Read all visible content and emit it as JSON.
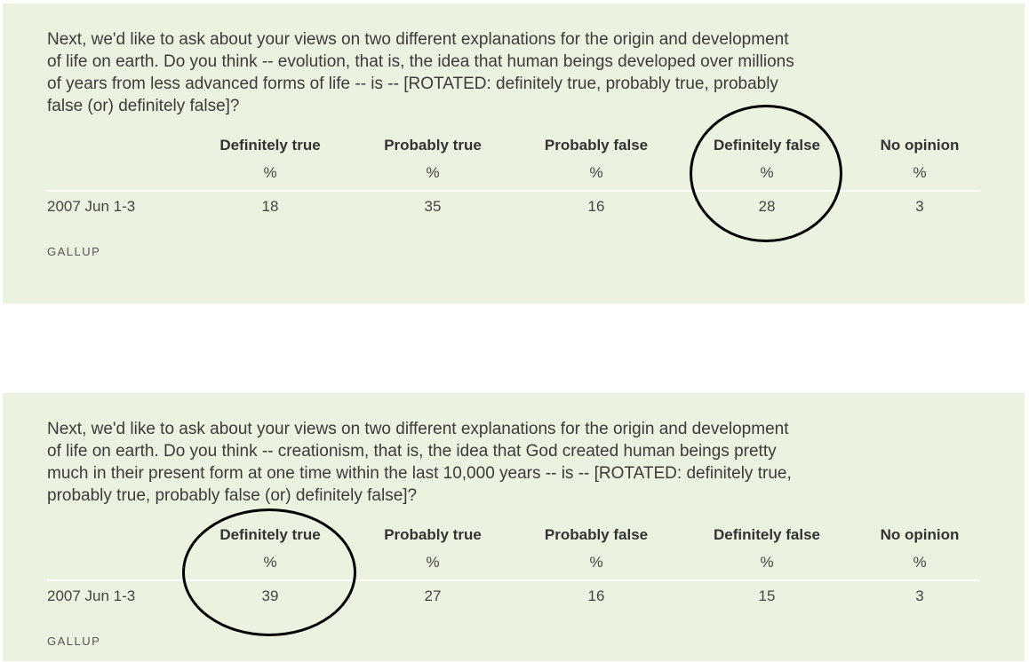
{
  "panels": [
    {
      "question": "Next, we'd like to ask about your views on two different explanations for the origin and development of life on earth. Do you think -- evolution, that is, the idea that human beings developed over millions of years from less advanced forms of life -- is -- [ROTATED: definitely true, probably true, probably false (or) definitely false]?",
      "columns": [
        "Definitely true",
        "Probably true",
        "Probably false",
        "Definitely false",
        "No opinion"
      ],
      "unit_row": [
        "%",
        "%",
        "%",
        "%",
        "%"
      ],
      "rows": [
        {
          "label": "2007 Jun 1-3",
          "values": [
            "18",
            "35",
            "16",
            "28",
            "3"
          ]
        }
      ],
      "source": "GALLUP",
      "highlighted_column": "Definitely false"
    },
    {
      "question": "Next, we'd like to ask about your views on two different explanations for the origin and development of life on earth. Do you think -- creationism, that is, the idea that God created human beings pretty much in their present form at one time within the last 10,000 years -- is -- [ROTATED: definitely true, probably true, probably false (or) definitely false]?",
      "columns": [
        "Definitely true",
        "Probably true",
        "Probably false",
        "Definitely false",
        "No opinion"
      ],
      "unit_row": [
        "%",
        "%",
        "%",
        "%",
        "%"
      ],
      "rows": [
        {
          "label": "2007 Jun 1-3",
          "values": [
            "39",
            "27",
            "16",
            "15",
            "3"
          ]
        }
      ],
      "source": "GALLUP",
      "highlighted_column": "Definitely true"
    }
  ],
  "colors": {
    "panel_background": "#ebf2df",
    "annotation_circle": "#000000"
  }
}
